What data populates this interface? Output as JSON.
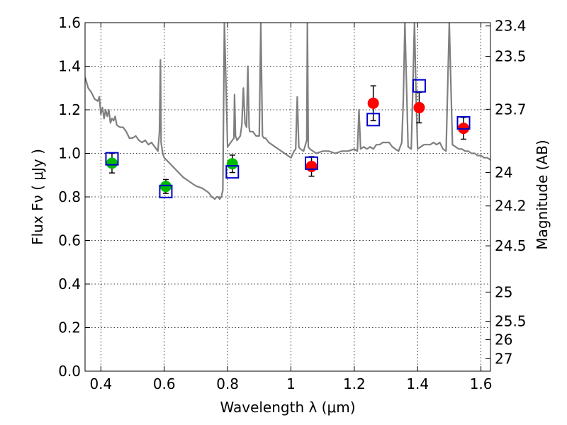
{
  "chart_data": {
    "type": "scatter",
    "title": "",
    "xlabel": "Wavelength  λ (μm)",
    "ylabel": "Flux  Fν  ( μJy )",
    "ylabel_right": "Magnitude (AB)",
    "xlim": [
      0.35,
      1.63
    ],
    "ylim": [
      0.0,
      1.6
    ],
    "grid": true,
    "x_ticks": [
      0.4,
      0.6,
      0.8,
      1.0,
      1.2,
      1.4,
      1.6
    ],
    "x_tick_labels": [
      "0.4",
      "0.6",
      "0.8",
      "1",
      "1.2",
      "1.4",
      "1.6"
    ],
    "y_ticks": [
      0.0,
      0.2,
      0.4,
      0.6,
      0.8,
      1.0,
      1.2,
      1.4,
      1.6
    ],
    "y_tick_labels": [
      "0.0",
      "0.2",
      "0.4",
      "0.6",
      "0.8",
      "1.0",
      "1.2",
      "1.4",
      "1.6"
    ],
    "right_ticks": [
      {
        "label": "23.4",
        "mag": 23.4
      },
      {
        "label": "23.5",
        "mag": 23.5
      },
      {
        "label": "23.7",
        "mag": 23.7
      },
      {
        "label": "24",
        "mag": 24.0
      },
      {
        "label": "24.2",
        "mag": 24.2
      },
      {
        "label": "24.5",
        "mag": 24.5
      },
      {
        "label": "25",
        "mag": 25.0
      },
      {
        "label": "25.5",
        "mag": 25.5
      },
      {
        "label": "26",
        "mag": 26.0
      },
      {
        "label": "27",
        "mag": 27.0
      }
    ],
    "series": [
      {
        "kind": "line",
        "color": "#808080",
        "x": [
          0.35,
          0.36,
          0.37,
          0.38,
          0.39,
          0.395,
          0.4,
          0.405,
          0.41,
          0.415,
          0.42,
          0.425,
          0.43,
          0.435,
          0.44,
          0.445,
          0.45,
          0.46,
          0.47,
          0.48,
          0.49,
          0.5,
          0.51,
          0.52,
          0.53,
          0.54,
          0.55,
          0.56,
          0.57,
          0.58,
          0.585,
          0.588,
          0.59,
          0.595,
          0.6,
          0.62,
          0.64,
          0.66,
          0.68,
          0.7,
          0.72,
          0.74,
          0.75,
          0.76,
          0.765,
          0.77,
          0.775,
          0.78,
          0.785,
          0.79,
          0.8,
          0.81,
          0.82,
          0.822,
          0.825,
          0.83,
          0.84,
          0.845,
          0.85,
          0.855,
          0.86,
          0.864,
          0.868,
          0.87,
          0.88,
          0.89,
          0.9,
          0.905,
          0.91,
          0.915,
          0.92,
          0.93,
          0.94,
          0.95,
          0.96,
          0.97,
          0.98,
          0.99,
          1.0,
          1.01,
          1.015,
          1.02,
          1.025,
          1.03,
          1.04,
          1.05,
          1.052,
          1.055,
          1.06,
          1.08,
          1.1,
          1.12,
          1.14,
          1.16,
          1.18,
          1.2,
          1.21,
          1.215,
          1.22,
          1.23,
          1.24,
          1.25,
          1.26,
          1.27,
          1.28,
          1.29,
          1.3,
          1.31,
          1.32,
          1.33,
          1.34,
          1.35,
          1.355,
          1.36,
          1.37,
          1.38,
          1.39,
          1.395,
          1.4,
          1.41,
          1.42,
          1.43,
          1.44,
          1.45,
          1.46,
          1.47,
          1.48,
          1.49,
          1.5,
          1.51,
          1.52,
          1.53,
          1.54,
          1.55,
          1.56,
          1.57,
          1.58,
          1.59,
          1.6,
          1.61,
          1.62,
          1.63
        ],
        "y": [
          1.35,
          1.3,
          1.28,
          1.25,
          1.24,
          1.26,
          1.18,
          1.21,
          1.16,
          1.2,
          1.17,
          1.2,
          1.14,
          1.16,
          1.15,
          1.17,
          1.13,
          1.12,
          1.12,
          1.1,
          1.07,
          1.07,
          1.08,
          1.06,
          1.05,
          1.06,
          1.04,
          1.05,
          1.03,
          1.01,
          1.1,
          1.43,
          1.05,
          1.0,
          0.98,
          0.95,
          0.92,
          0.89,
          0.87,
          0.85,
          0.84,
          0.82,
          0.8,
          0.79,
          0.8,
          0.8,
          0.79,
          0.8,
          0.83,
          1.6,
          1.03,
          1.05,
          1.07,
          1.27,
          1.08,
          1.06,
          1.08,
          1.13,
          1.3,
          1.14,
          1.12,
          1.4,
          1.12,
          1.1,
          1.1,
          1.08,
          1.08,
          1.6,
          1.08,
          1.07,
          1.07,
          1.05,
          1.04,
          1.03,
          1.02,
          1.01,
          1.0,
          0.99,
          0.98,
          1.01,
          1.02,
          1.26,
          1.03,
          1.02,
          1.01,
          1.06,
          1.6,
          1.03,
          1.02,
          1.0,
          1.01,
          1.01,
          1.0,
          1.01,
          1.01,
          1.02,
          1.01,
          1.2,
          1.02,
          1.03,
          1.02,
          1.03,
          1.02,
          1.04,
          1.04,
          1.05,
          1.05,
          1.05,
          1.03,
          1.02,
          1.01,
          1.05,
          1.25,
          1.6,
          1.03,
          1.02,
          1.6,
          1.27,
          1.02,
          1.03,
          1.04,
          1.04,
          1.04,
          1.05,
          1.04,
          1.05,
          1.02,
          1.01,
          1.6,
          1.04,
          1.03,
          1.02,
          1.02,
          1.01,
          1.01,
          1.0,
          1.0,
          0.99,
          0.99,
          0.98,
          0.98,
          0.97
        ]
      },
      {
        "kind": "points",
        "color": "#00bb00",
        "x": [
          0.435,
          0.605,
          0.815
        ],
        "y": [
          0.955,
          0.848,
          0.952
        ],
        "yerr": [
          0.045,
          0.032,
          0.04
        ]
      },
      {
        "kind": "points",
        "color": "#ff0000",
        "x": [
          1.065,
          1.26,
          1.405,
          1.545
        ],
        "y": [
          0.94,
          1.23,
          1.21,
          1.115
        ],
        "yerr": [
          0.045,
          0.08,
          0.07,
          0.05
        ]
      },
      {
        "kind": "open-squares",
        "color": "#0000cc",
        "x": [
          0.435,
          0.605,
          0.815,
          1.065,
          1.26,
          1.405,
          1.545
        ],
        "y": [
          0.975,
          0.825,
          0.915,
          0.955,
          1.155,
          1.31,
          1.14
        ]
      }
    ]
  }
}
